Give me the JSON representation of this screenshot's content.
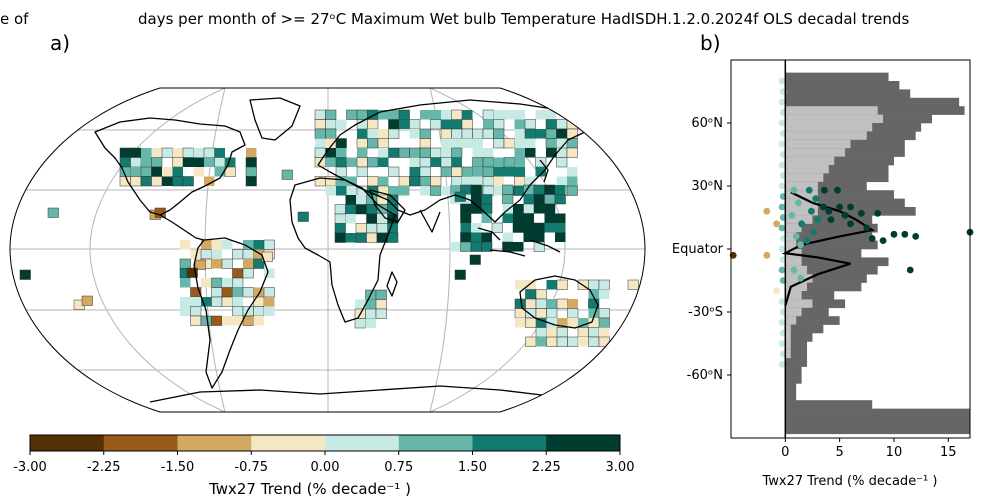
{
  "figure": {
    "title_left_fragment": "e of",
    "title_main": "days per month of >= 27ᵒC Maximum Wet bulb Temperature HadISDH.1.2.0.2024f OLS decadal trends"
  },
  "chart_data": [
    {
      "panel": "a)",
      "type": "heatmap",
      "projection": "Robinson (global map)",
      "colorbar": {
        "label": "Twx27 Trend (% decade⁻¹ )",
        "ticks": [
          "-3.00",
          "-2.25",
          "-1.50",
          "-0.75",
          "0.00",
          "0.75",
          "1.50",
          "2.25",
          "3.00"
        ],
        "bins": [
          {
            "from": -3.0,
            "to": -2.25,
            "color": "#543005"
          },
          {
            "from": -2.25,
            "to": -1.5,
            "color": "#995b1c"
          },
          {
            "from": -1.5,
            "to": -0.75,
            "color": "#d3a860"
          },
          {
            "from": -0.75,
            "to": 0.0,
            "color": "#f6e7c3"
          },
          {
            "from": 0.0,
            "to": 0.75,
            "color": "#c7eae5"
          },
          {
            "from": 0.75,
            "to": 1.5,
            "color": "#66b7aa"
          },
          {
            "from": 1.5,
            "to": 2.25,
            "color": "#137a70"
          },
          {
            "from": 2.25,
            "to": 3.0,
            "color": "#003c30"
          }
        ]
      },
      "gridlines": true
    },
    {
      "panel": "b)",
      "type": "scatter",
      "xlabel": "Twx27 Trend (% decade⁻¹ )",
      "xlim": [
        -5,
        17
      ],
      "xticks": [
        0,
        5,
        10,
        15
      ],
      "ylim": [
        -90,
        90
      ],
      "yticks": [
        {
          "lat": 60,
          "label": "60ᵒN"
        },
        {
          "lat": 30,
          "label": "30ᵒN"
        },
        {
          "lat": 0,
          "label": "Equator"
        },
        {
          "lat": -30,
          "label": "-30ᵒS"
        },
        {
          "lat": -60,
          "label": "-60ᵒN"
        }
      ],
      "coverage_lat": [
        82,
        78,
        74,
        70,
        66,
        62,
        58,
        54,
        50,
        46,
        42,
        38,
        34,
        30,
        26,
        22,
        18,
        14,
        10,
        6,
        2,
        -2,
        -6,
        -10,
        -14,
        -18,
        -22,
        -26,
        -30,
        -34,
        -38,
        -42,
        -46,
        -50,
        -54,
        -58,
        -62,
        -66,
        -70,
        -74,
        -78,
        -82,
        -86
      ],
      "coverage_land": [
        9.5,
        10.5,
        11.5,
        16,
        16.5,
        13.5,
        12.5,
        12,
        11,
        11,
        10,
        9.5,
        9.5,
        7.5,
        10,
        11,
        12,
        8,
        8.5,
        8,
        8.5,
        7,
        9.5,
        8.5,
        7.5,
        7,
        4.5,
        5.5,
        4,
        5,
        3.5,
        2.5,
        2,
        2,
        2,
        1.5,
        1.5,
        1,
        1,
        8,
        17,
        17,
        17
      ],
      "coverage_obs": [
        0,
        0,
        0,
        0,
        8.5,
        9,
        8,
        7.5,
        6,
        5.5,
        4.5,
        4,
        3.5,
        3,
        3,
        3,
        3,
        2.5,
        1.5,
        1,
        1,
        1.5,
        1.5,
        2,
        2.5,
        2,
        1.5,
        2.5,
        1.5,
        1,
        0.5,
        0.5,
        0.5,
        0.5,
        0,
        0,
        0,
        0,
        0,
        0,
        0,
        0,
        0
      ],
      "mean_line": [
        {
          "lat": 27,
          "x": 0.5
        },
        {
          "lat": 22,
          "x": 2.5
        },
        {
          "lat": 18,
          "x": 5
        },
        {
          "lat": 14,
          "x": 6.5
        },
        {
          "lat": 9,
          "x": 8
        },
        {
          "lat": 6,
          "x": 5
        },
        {
          "lat": 2,
          "x": 1.5
        },
        {
          "lat": -2,
          "x": 0
        },
        {
          "lat": -4,
          "x": 3
        },
        {
          "lat": -7,
          "x": 6
        },
        {
          "lat": -12,
          "x": 3
        },
        {
          "lat": -18,
          "x": 0.5
        },
        {
          "lat": -27,
          "x": 0
        }
      ],
      "points": [
        {
          "x": -4.8,
          "y": -3,
          "c": "#543005"
        },
        {
          "x": -1.7,
          "y": 18,
          "c": "#d3a860"
        },
        {
          "x": -1.7,
          "y": -3,
          "c": "#d3a860"
        },
        {
          "x": -0.8,
          "y": 12,
          "c": "#d3a860"
        },
        {
          "x": -0.8,
          "y": -20,
          "c": "#f6e7c3"
        },
        {
          "x": -0.3,
          "y": 80,
          "c": "#c7eae5"
        },
        {
          "x": -0.2,
          "y": 75,
          "c": "#c7eae5"
        },
        {
          "x": -0.3,
          "y": 70,
          "c": "#c7eae5"
        },
        {
          "x": -0.2,
          "y": 65,
          "c": "#c7eae5"
        },
        {
          "x": -0.3,
          "y": 60,
          "c": "#c7eae5"
        },
        {
          "x": -0.2,
          "y": 55,
          "c": "#c7eae5"
        },
        {
          "x": -0.3,
          "y": 50,
          "c": "#c7eae5"
        },
        {
          "x": -0.2,
          "y": 45,
          "c": "#c7eae5"
        },
        {
          "x": -0.3,
          "y": 40,
          "c": "#c7eae5"
        },
        {
          "x": -0.2,
          "y": 35,
          "c": "#c7eae5"
        },
        {
          "x": -0.3,
          "y": 30,
          "c": "#c7eae5"
        },
        {
          "x": -0.2,
          "y": 25,
          "c": "#66b7aa"
        },
        {
          "x": -0.3,
          "y": 20,
          "c": "#66b7aa"
        },
        {
          "x": -0.2,
          "y": 15,
          "c": "#66b7aa"
        },
        {
          "x": -0.3,
          "y": 10,
          "c": "#66b7aa"
        },
        {
          "x": -0.2,
          "y": 5,
          "c": "#c7eae5"
        },
        {
          "x": -0.3,
          "y": 0,
          "c": "#c7eae5"
        },
        {
          "x": -0.2,
          "y": -5,
          "c": "#c7eae5"
        },
        {
          "x": -0.3,
          "y": -10,
          "c": "#66b7aa"
        },
        {
          "x": -0.2,
          "y": -15,
          "c": "#66b7aa"
        },
        {
          "x": -0.3,
          "y": -25,
          "c": "#c7eae5"
        },
        {
          "x": -0.2,
          "y": -30,
          "c": "#c7eae5"
        },
        {
          "x": -0.3,
          "y": -35,
          "c": "#c7eae5"
        },
        {
          "x": -0.2,
          "y": -40,
          "c": "#c7eae5"
        },
        {
          "x": -0.3,
          "y": -45,
          "c": "#c7eae5"
        },
        {
          "x": -0.2,
          "y": -50,
          "c": "#c7eae5"
        },
        {
          "x": -0.3,
          "y": -55,
          "c": "#c7eae5"
        },
        {
          "x": 0.8,
          "y": 28,
          "c": "#66b7aa"
        },
        {
          "x": 1.2,
          "y": 22,
          "c": "#66b7aa"
        },
        {
          "x": 0.6,
          "y": 16,
          "c": "#66b7aa"
        },
        {
          "x": 1.5,
          "y": 12,
          "c": "#137a70"
        },
        {
          "x": 1.0,
          "y": 6,
          "c": "#66b7aa"
        },
        {
          "x": 1.4,
          "y": 2,
          "c": "#66b7aa"
        },
        {
          "x": 0.8,
          "y": -10,
          "c": "#66b7aa"
        },
        {
          "x": 1.4,
          "y": -14,
          "c": "#66b7aa"
        },
        {
          "x": 2.2,
          "y": 28,
          "c": "#137a70"
        },
        {
          "x": 2.8,
          "y": 24,
          "c": "#137a70"
        },
        {
          "x": 2.4,
          "y": 18,
          "c": "#137a70"
        },
        {
          "x": 3.0,
          "y": 14,
          "c": "#137a70"
        },
        {
          "x": 2.6,
          "y": 8,
          "c": "#137a70"
        },
        {
          "x": 2.0,
          "y": 4,
          "c": "#137a70"
        },
        {
          "x": 3.5,
          "y": 20,
          "c": "#003c30"
        },
        {
          "x": 3.6,
          "y": 28,
          "c": "#003c30"
        },
        {
          "x": 4.0,
          "y": 18,
          "c": "#003c30"
        },
        {
          "x": 4.2,
          "y": 14,
          "c": "#003c30"
        },
        {
          "x": 4.8,
          "y": 28,
          "c": "#003c30"
        },
        {
          "x": 5.0,
          "y": 20,
          "c": "#003c30"
        },
        {
          "x": 5.5,
          "y": 16,
          "c": "#003c30"
        },
        {
          "x": 6.0,
          "y": 12,
          "c": "#003c30"
        },
        {
          "x": 6.0,
          "y": 20,
          "c": "#003c30"
        },
        {
          "x": 7.0,
          "y": 17,
          "c": "#003c30"
        },
        {
          "x": 7.5,
          "y": 10,
          "c": "#003c30"
        },
        {
          "x": 8.0,
          "y": 5,
          "c": "#003c30"
        },
        {
          "x": 8.5,
          "y": 17,
          "c": "#003c30"
        },
        {
          "x": 9.0,
          "y": 4,
          "c": "#003c30"
        },
        {
          "x": 10.0,
          "y": 7,
          "c": "#003c30"
        },
        {
          "x": 11.0,
          "y": 7,
          "c": "#003c30"
        },
        {
          "x": 12.0,
          "y": 6,
          "c": "#003c30"
        },
        {
          "x": 11.5,
          "y": -10,
          "c": "#003c30"
        },
        {
          "x": 17.0,
          "y": 8,
          "c": "#003c30"
        }
      ]
    }
  ]
}
